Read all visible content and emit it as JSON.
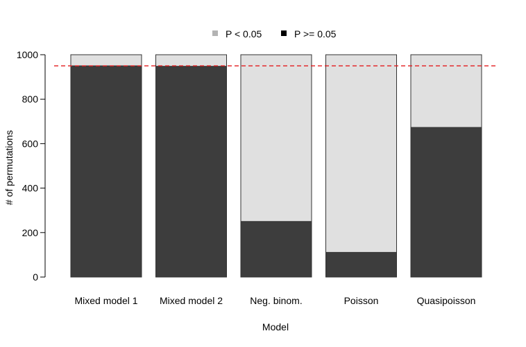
{
  "chart_data": {
    "type": "bar",
    "stacked": true,
    "categories": [
      "Mixed model 1",
      "Mixed model 2",
      "Neg. binom.",
      "Poisson",
      "Quasipoisson"
    ],
    "series": [
      {
        "name": "P >= 0.05",
        "values": [
          950,
          948,
          250,
          111,
          673
        ]
      },
      {
        "name": "P < 0.05",
        "values": [
          50,
          52,
          750,
          889,
          327
        ]
      }
    ],
    "title": "",
    "xlabel": "Model",
    "ylabel": "# of permutations",
    "ylim": [
      0,
      1000
    ],
    "yticks": [
      0,
      200,
      400,
      600,
      800,
      1000
    ],
    "reference_line": {
      "value": 950,
      "color": "#e41a1c",
      "style": "dashed"
    },
    "legend": {
      "position": "top",
      "entries": [
        {
          "label": "P < 0.05",
          "color": "#b3b3b3"
        },
        {
          "label": "P >= 0.05",
          "color": "#000000"
        }
      ]
    },
    "colors": {
      "lower_bar": "#3d3d3d",
      "upper_bar": "#e0e0e0",
      "bar_outline": "#333333"
    },
    "grid": false
  }
}
